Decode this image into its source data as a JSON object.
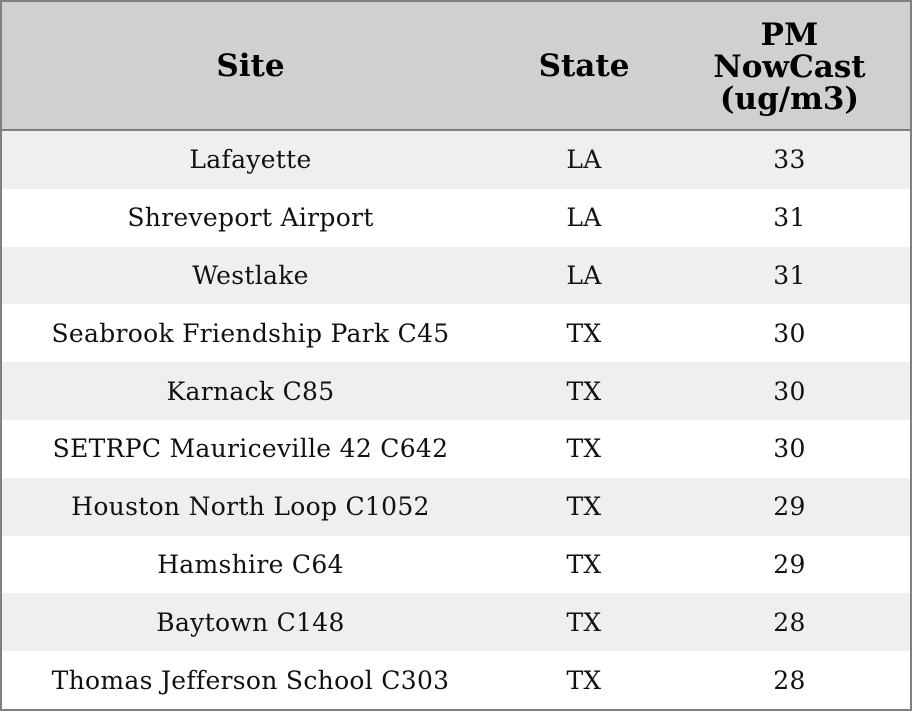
{
  "colors": {
    "header_bg": "#d0d0d0",
    "stripe_bg": "#efefef",
    "border": "#808080"
  },
  "chart_data": {
    "type": "table",
    "columns": [
      "Site",
      "State",
      "PM NowCast (ug/m3)"
    ],
    "column_lines": [
      [
        "Site"
      ],
      [
        "State"
      ],
      [
        "PM",
        "NowCast",
        "(ug/m3)"
      ]
    ],
    "rows": [
      [
        "Lafayette",
        "LA",
        "33"
      ],
      [
        "Shreveport Airport",
        "LA",
        "31"
      ],
      [
        "Westlake",
        "LA",
        "31"
      ],
      [
        "Seabrook Friendship Park C45",
        "TX",
        "30"
      ],
      [
        "Karnack C85",
        "TX",
        "30"
      ],
      [
        "SETRPC Mauriceville 42 C642",
        "TX",
        "30"
      ],
      [
        "Houston North Loop C1052",
        "TX",
        "29"
      ],
      [
        "Hamshire C64",
        "TX",
        "29"
      ],
      [
        "Baytown C148",
        "TX",
        "28"
      ],
      [
        "Thomas Jefferson School C303",
        "TX",
        "28"
      ]
    ]
  }
}
